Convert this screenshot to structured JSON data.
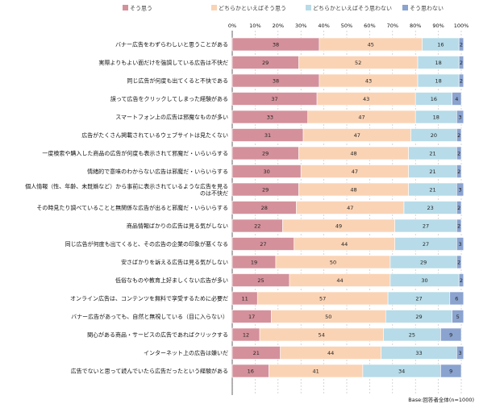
{
  "chart_data": {
    "type": "bar",
    "stacked": true,
    "orientation": "horizontal",
    "xlim": [
      0,
      100
    ],
    "x_ticks": [
      "0%",
      "10%",
      "20%",
      "30%",
      "40%",
      "50%",
      "60%",
      "70%",
      "80%",
      "90%",
      "100%"
    ],
    "grid": true,
    "legend_position": "top",
    "categories": [
      "バナー広告をわずらわしいと思うことがある",
      "実際よりもよい面だけを強調している広告は不快だ",
      "同じ広告が何度も出てくると不快である",
      "誤って広告をクリックしてしまった経験がある",
      "スマートフォン上の広告は邪魔なものが多い",
      "広告がたくさん掲載されているウェブサイトは見たくない",
      "一度検索や購入した商品の広告が何度も表示されて邪魔だ・いらいらする",
      "情緒的で意味のわからない広告は邪魔だ・いらいらする",
      "個人情報（性、年齢、未既婚など）から事前に表示されているような広告を見るのは不快だ",
      "その時見たり調べていることと無関係な広告が出ると邪魔だ・いらいらする",
      "商品情報ばかりの広告は見る気がしない",
      "同じ広告が何度も出てくると、その広告の企業の印象が悪くなる",
      "安さばかりを訴える広告は見る気がしない",
      "低俗なものや教育上好ましくない広告が多い",
      "オンライン広告は、コンテンツを無料で享受するために必要だ",
      "バナー広告があっても、自然と無視している（目に入らない）",
      "関心がある商品・サービスの広告であればクリックする",
      "インターネット上の広告は嫌いだ",
      "広告でないと思って読んでいたら広告だったという経験がある"
    ],
    "series": [
      {
        "name": "そう思う",
        "color": "#d4919b",
        "values": [
          38,
          29,
          38,
          37,
          33,
          31,
          29,
          30,
          29,
          28,
          22,
          27,
          19,
          25,
          11,
          17,
          12,
          21,
          16
        ]
      },
      {
        "name": "どちらかといえばそう思う",
        "color": "#fad3b5",
        "values": [
          45,
          52,
          43,
          43,
          47,
          47,
          48,
          47,
          48,
          47,
          49,
          44,
          50,
          44,
          57,
          50,
          54,
          44,
          41
        ]
      },
      {
        "name": "どちらかといえばそう思わない",
        "color": "#b7dbe8",
        "values": [
          16,
          18,
          18,
          16,
          18,
          20,
          21,
          21,
          21,
          23,
          27,
          27,
          29,
          30,
          27,
          29,
          25,
          33,
          34
        ]
      },
      {
        "name": "そう思わない",
        "color": "#8aa3cf",
        "values": [
          2,
          2,
          2,
          4,
          3,
          2,
          2,
          2,
          3,
          2,
          2,
          3,
          2,
          2,
          6,
          5,
          9,
          3,
          9
        ]
      }
    ],
    "note": "Base:回答者全体(n=1000)"
  }
}
